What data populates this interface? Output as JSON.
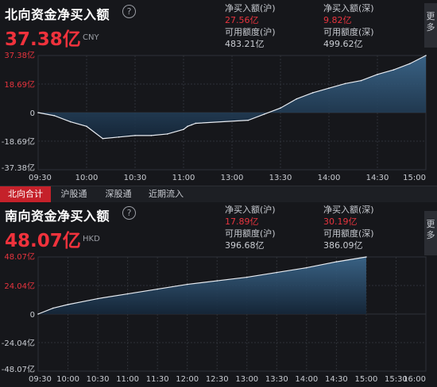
{
  "more_label": "更多",
  "north": {
    "title": "北向资金净买入额",
    "help_icon": "?",
    "value": "37.38亿",
    "currency": "CNY",
    "stats": {
      "sh_net_label": "净买入额(沪)",
      "sh_net_value": "27.56亿",
      "sz_net_label": "净买入额(深)",
      "sz_net_value": "9.82亿",
      "sh_quota_label": "可用额度(沪)",
      "sh_quota_value": "483.21亿",
      "sz_quota_label": "可用额度(深)",
      "sz_quota_value": "499.62亿"
    }
  },
  "tabs": [
    "北向合计",
    "沪股通",
    "深股通",
    "近期流入"
  ],
  "south": {
    "title": "南向资金净买入额",
    "help_icon": "?",
    "value": "48.07亿",
    "currency": "HKD",
    "stats": {
      "sh_net_label": "净买入额(沪)",
      "sh_net_value": "17.89亿",
      "sz_net_label": "净买入额(深)",
      "sz_net_value": "30.19亿",
      "sh_quota_label": "可用额度(沪)",
      "sh_quota_value": "396.68亿",
      "sz_quota_label": "可用额度(深)",
      "sz_quota_value": "386.09亿"
    }
  },
  "colors": {
    "accent_red": "#e8343e",
    "line": "#e8ecf2",
    "area_top": "#3d6a90",
    "area_bottom": "#15273a",
    "grid": "#2f3238"
  },
  "chart_data": [
    {
      "type": "area",
      "title": "北向资金净买入额",
      "x_ticks": [
        "09:30",
        "10:00",
        "10:30",
        "11:00",
        "13:00",
        "13:30",
        "14:00",
        "14:30",
        "15:00"
      ],
      "y_ticks": [
        "37.38亿",
        "18.69亿",
        "0",
        "-18.69亿",
        "-37.38亿"
      ],
      "ylim": [
        -37.38,
        37.38
      ],
      "unit": "亿",
      "grid": true,
      "series": [
        {
          "x": [
            "09:30",
            "09:40",
            "09:50",
            "10:00",
            "10:10",
            "10:20",
            "10:30",
            "10:40",
            "10:50",
            "11:00",
            "11:10",
            "11:20",
            "11:30",
            "13:10",
            "13:20",
            "13:30",
            "13:40",
            "13:50",
            "14:00",
            "14:10",
            "14:20",
            "14:30",
            "14:40",
            "14:50",
            "15:00"
          ],
          "values": [
            0,
            -2,
            -6,
            -9,
            -17,
            -16,
            -15,
            -15,
            -14,
            -11,
            -9,
            -8,
            -7,
            -5,
            -1,
            3,
            9,
            13,
            16,
            19,
            21,
            25,
            28,
            32,
            37.38
          ]
        }
      ]
    },
    {
      "type": "area",
      "title": "南向资金净买入额",
      "x_ticks": [
        "09:30",
        "10:00",
        "10:30",
        "11:00",
        "11:30",
        "12:00",
        "12:30",
        "13:00",
        "13:30",
        "14:00",
        "14:30",
        "15:00",
        "15:30",
        "16:00"
      ],
      "y_ticks": [
        "48.07亿",
        "24.04亿",
        "0",
        "-24.04亿",
        "-48.07亿"
      ],
      "ylim": [
        -48.07,
        48.07
      ],
      "unit": "亿",
      "grid": true,
      "series": [
        {
          "x": [
            "09:30",
            "09:45",
            "10:00",
            "10:30",
            "11:00",
            "11:30",
            "12:00",
            "12:30",
            "13:00",
            "13:30",
            "14:00",
            "14:30",
            "15:00"
          ],
          "values": [
            0,
            5,
            8,
            13,
            17,
            21,
            25,
            28,
            31,
            35,
            39,
            44,
            48.07
          ]
        }
      ]
    }
  ]
}
